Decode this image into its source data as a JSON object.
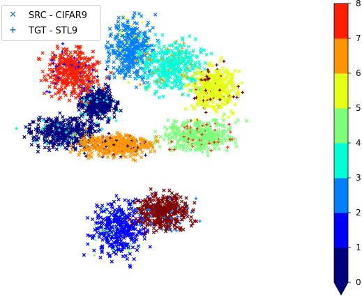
{
  "chart_data": {
    "type": "scatter",
    "title": "",
    "xlabel": "",
    "ylabel": "",
    "axes_visible": false,
    "legend": {
      "placement": "top-left",
      "entries": [
        {
          "label": "SRC - CIFAR9",
          "marker": "x",
          "marker_icon": "x-marker-icon",
          "color": "#1f77b4"
        },
        {
          "label": "TGT - STL9",
          "marker": "+",
          "marker_icon": "plus-marker-icon",
          "color": "#1f77b4"
        }
      ]
    },
    "colorbar": {
      "colormap": "jet",
      "range": [
        0,
        8
      ],
      "ticks": [
        "0",
        "1",
        "2",
        "3",
        "4",
        "5",
        "6",
        "7",
        "8"
      ],
      "extend": "min",
      "colors": [
        "#00007f",
        "#0000ff",
        "#007fff",
        "#00ffd6",
        "#7dff7a",
        "#e4ff13",
        "#ff9400",
        "#ff1e00",
        "#7f0000"
      ]
    },
    "x_range": [
      -1.0,
      1.0
    ],
    "y_range": [
      -1.0,
      1.0
    ],
    "clusters": [
      {
        "class": 0,
        "center": [
          -0.62,
          0.12
        ],
        "spread": [
          0.2,
          0.1
        ],
        "color": "#00007f"
      },
      {
        "class": 0,
        "center": [
          -0.38,
          0.34
        ],
        "spread": [
          0.1,
          0.1
        ],
        "color": "#00007f"
      },
      {
        "class": 1,
        "center": [
          -0.24,
          -0.6
        ],
        "spread": [
          0.16,
          0.18
        ],
        "color": "#0000ff"
      },
      {
        "class": 2,
        "center": [
          -0.15,
          0.75
        ],
        "spread": [
          0.12,
          0.2
        ],
        "color": "#007fff"
      },
      {
        "class": 3,
        "center": [
          0.12,
          0.62
        ],
        "spread": [
          0.18,
          0.16
        ],
        "color": "#00ffd6"
      },
      {
        "class": 4,
        "center": [
          0.3,
          0.1
        ],
        "spread": [
          0.22,
          0.1
        ],
        "color": "#7dff7a"
      },
      {
        "class": 5,
        "center": [
          0.42,
          0.45
        ],
        "spread": [
          0.14,
          0.14
        ],
        "color": "#e4ff13"
      },
      {
        "class": 6,
        "center": [
          -0.25,
          0.02
        ],
        "spread": [
          0.22,
          0.08
        ],
        "color": "#ff9400"
      },
      {
        "class": 7,
        "center": [
          -0.55,
          0.58
        ],
        "spread": [
          0.16,
          0.16
        ],
        "color": "#ff1e00"
      },
      {
        "class": 8,
        "center": [
          0.07,
          -0.48
        ],
        "spread": [
          0.16,
          0.12
        ],
        "color": "#7f0000"
      }
    ]
  }
}
